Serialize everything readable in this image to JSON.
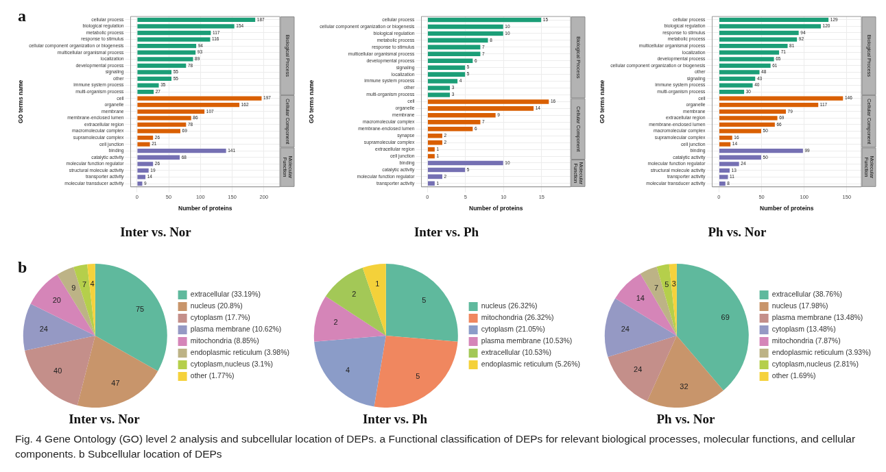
{
  "chart_data": [
    {
      "type": "bar",
      "orientation": "horizontal",
      "title": "Inter vs. Nor",
      "xlabel": "Number of proteins",
      "ylabel": "GO terms name",
      "annotations": [
        "a"
      ],
      "categories": [
        "cellular process",
        "biological regulation",
        "metabolic process",
        "response to stimulus",
        "cellular component organization or biogenesis",
        "multicellular organismal process",
        "localization",
        "developmental process",
        "signaling",
        "other",
        "immune system process",
        "multi-organism process",
        "cell",
        "organelle",
        "membrane",
        "membrane-enclosed lumen",
        "extracellular region",
        "macromolecular complex",
        "supramolecular complex",
        "cell junction",
        "binding",
        "catalytic activity",
        "molecular function regulator",
        "structural molecule activity",
        "transporter activity",
        "molecular transducer activity"
      ],
      "series": [
        {
          "name": "Biological Process",
          "color": "#1b9e77",
          "values": [
            187,
            154,
            117,
            116,
            94,
            93,
            89,
            78,
            55,
            55,
            35,
            27,
            null,
            null,
            null,
            null,
            null,
            null,
            null,
            null,
            null,
            null,
            null,
            null,
            null,
            null
          ]
        },
        {
          "name": "Cellular Component",
          "color": "#d95f02",
          "values": [
            null,
            null,
            null,
            null,
            null,
            null,
            null,
            null,
            null,
            null,
            null,
            null,
            197,
            162,
            107,
            86,
            78,
            69,
            26,
            21,
            null,
            null,
            null,
            null,
            null,
            null
          ]
        },
        {
          "name": "Molecular Function",
          "color": "#7570b3",
          "values": [
            null,
            null,
            null,
            null,
            null,
            null,
            null,
            null,
            null,
            null,
            null,
            null,
            null,
            null,
            null,
            null,
            null,
            null,
            null,
            null,
            141,
            68,
            26,
            19,
            14,
            9
          ]
        }
      ],
      "xlim": [
        -10,
        225
      ],
      "xticks": [
        0,
        50,
        100,
        150,
        200
      ],
      "grid": true,
      "data_labels": true
    },
    {
      "type": "bar",
      "orientation": "horizontal",
      "title": "Inter vs. Ph",
      "xlabel": "Number of proteins",
      "ylabel": "GO terms name",
      "categories": [
        "cellular process",
        "cellular component organization or biogenesis",
        "biological regulation",
        "metabolic process",
        "response to stimulus",
        "multicellular organismal process",
        "developmental process",
        "signaling",
        "localization",
        "immune system process",
        "other",
        "multi-organism process",
        "cell",
        "organelle",
        "membrane",
        "macromolecular complex",
        "membrane-enclosed lumen",
        "synapse",
        "supramolecular complex",
        "extracellular region",
        "cell junction",
        "binding",
        "catalytic activity",
        "molecular function regulator",
        "transporter activity"
      ],
      "series": [
        {
          "name": "Biological Process",
          "color": "#1b9e77",
          "values": [
            15,
            10,
            10,
            8,
            7,
            7,
            6,
            5,
            5,
            4,
            3,
            3,
            null,
            null,
            null,
            null,
            null,
            null,
            null,
            null,
            null,
            null,
            null,
            null,
            null
          ]
        },
        {
          "name": "Cellular Component",
          "color": "#d95f02",
          "values": [
            null,
            null,
            null,
            null,
            null,
            null,
            null,
            null,
            null,
            null,
            null,
            null,
            16,
            14,
            9,
            7,
            6,
            2,
            2,
            1,
            1,
            null,
            null,
            null,
            null
          ]
        },
        {
          "name": "Molecular Function",
          "color": "#7570b3",
          "values": [
            null,
            null,
            null,
            null,
            null,
            null,
            null,
            null,
            null,
            null,
            null,
            null,
            null,
            null,
            null,
            null,
            null,
            null,
            null,
            null,
            null,
            10,
            5,
            2,
            1
          ]
        }
      ],
      "xlim": [
        -0.8,
        18.8
      ],
      "xticks": [
        0,
        5,
        10,
        15
      ],
      "grid": true,
      "data_labels": true
    },
    {
      "type": "bar",
      "orientation": "horizontal",
      "title": "Ph vs. Nor",
      "xlabel": "Number of proteins",
      "ylabel": "GO terms name",
      "categories": [
        "cellular process",
        "biological regulation",
        "response to stimulus",
        "metabolic process",
        "multicellular organismal process",
        "localization",
        "developmental process",
        "cellular component organization or biogenesis",
        "other",
        "signaling",
        "immune system process",
        "multi-organism process",
        "cell",
        "organelle",
        "membrane",
        "extracellular region",
        "membrane-enclosed lumen",
        "macromolecular complex",
        "supramolecular complex",
        "cell junction",
        "binding",
        "catalytic activity",
        "molecular function regulator",
        "structural molecule activity",
        "transporter activity",
        "molecular transducer activity"
      ],
      "series": [
        {
          "name": "Biological Process",
          "color": "#1b9e77",
          "values": [
            129,
            120,
            94,
            92,
            81,
            71,
            65,
            61,
            48,
            43,
            40,
            30,
            null,
            null,
            null,
            null,
            null,
            null,
            null,
            null,
            null,
            null,
            null,
            null,
            null,
            null
          ]
        },
        {
          "name": "Cellular Component",
          "color": "#d95f02",
          "values": [
            null,
            null,
            null,
            null,
            null,
            null,
            null,
            null,
            null,
            null,
            null,
            null,
            146,
            117,
            79,
            69,
            66,
            50,
            16,
            14,
            null,
            null,
            null,
            null,
            null,
            null
          ]
        },
        {
          "name": "Molecular Function",
          "color": "#7570b3",
          "values": [
            null,
            null,
            null,
            null,
            null,
            null,
            null,
            null,
            null,
            null,
            null,
            null,
            null,
            null,
            null,
            null,
            null,
            null,
            null,
            null,
            99,
            50,
            24,
            13,
            11,
            8
          ]
        }
      ],
      "xlim": [
        -8,
        167
      ],
      "xticks": [
        0,
        50,
        100,
        150
      ],
      "grid": true,
      "data_labels": true
    },
    {
      "type": "pie",
      "title": "Inter vs. Nor",
      "annotations": [
        "b"
      ],
      "categories": [
        "extracellular (33.19%)",
        "nucleus (20.8%)",
        "cytoplasm (17.7%)",
        "plasma membrane (10.62%)",
        "mitochondria (8.85%)",
        "endoplasmic reticulum (3.98%)",
        "cytoplasm,nucleus (3.1%)",
        "other (1.77%)"
      ],
      "values": [
        75,
        47,
        40,
        24,
        20,
        9,
        7,
        4
      ],
      "colors": [
        "#5fb99d",
        "#c8956b",
        "#c48f8a",
        "#9599c4",
        "#d585b8",
        "#bdb386",
        "#b5cf4b",
        "#f5d23c"
      ],
      "data_labels": true,
      "legend": "right"
    },
    {
      "type": "pie",
      "title": "Inter vs. Ph",
      "categories": [
        "nucleus (26.32%)",
        "mitochondria (26.32%)",
        "cytoplasm (21.05%)",
        "plasma membrane (10.53%)",
        "extracellular (10.53%)",
        "endoplasmic reticulum (5.26%)"
      ],
      "values": [
        5,
        5,
        4,
        2,
        2,
        1
      ],
      "colors": [
        "#5fb99d",
        "#f0875f",
        "#8b9cc8",
        "#d585b8",
        "#a3c857",
        "#f4d13a"
      ],
      "data_labels": true,
      "legend": "right"
    },
    {
      "type": "pie",
      "title": "Ph vs. Nor",
      "annotations": [
        "Fig. 4  Gene Ontology (GO) level 2 analysis and subcellular location of DEPs. a Functional classification of DEPs for relevant biological processes, molecular functions, and cellular components. b Subcellular location of DEPs"
      ],
      "categories": [
        "extracellular (38.76%)",
        "nucleus (17.98%)",
        "plasma membrane (13.48%)",
        "cytoplasm (13.48%)",
        "mitochondria (7.87%)",
        "endoplasmic reticulum (3.93%)",
        "cytoplasm,nucleus (2.81%)",
        "other (1.69%)"
      ],
      "values": [
        69,
        32,
        24,
        24,
        14,
        7,
        5,
        3
      ],
      "colors": [
        "#5fb99d",
        "#c8956b",
        "#c48f8a",
        "#9599c4",
        "#d585b8",
        "#bdb386",
        "#b5cf4b",
        "#f5d23c"
      ],
      "data_labels": true,
      "legend": "right"
    }
  ]
}
